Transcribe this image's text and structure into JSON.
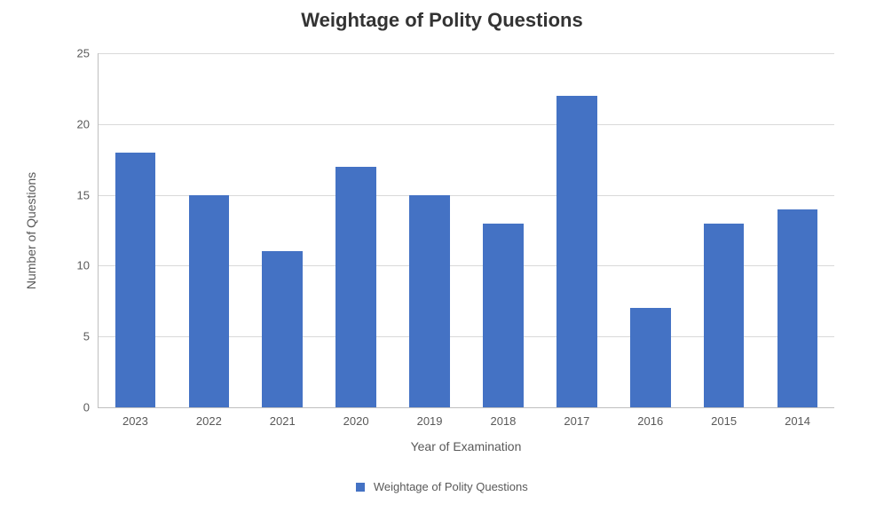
{
  "chart": {
    "type": "bar",
    "title": "Weightage of Polity Questions",
    "title_fontsize": 22,
    "title_fontweight": "bold",
    "title_color": "#333333",
    "background_color": "#ffffff",
    "plot_background_color": "#ffffff",
    "grid_color": "#d9d9d9",
    "axis_line_color": "#bfbfbf",
    "tick_label_color": "#595959",
    "tick_label_fontsize": 13,
    "axis_title_color": "#595959",
    "axis_title_fontsize": 14,
    "x_axis_title": "Year of Examination",
    "y_axis_title": "Number of Questions",
    "ylim": [
      0,
      25
    ],
    "ytick_step": 5,
    "yticks": [
      0,
      5,
      10,
      15,
      20,
      25
    ],
    "categories": [
      "2023",
      "2022",
      "2021",
      "2020",
      "2019",
      "2018",
      "2017",
      "2016",
      "2015",
      "2014"
    ],
    "values": [
      18,
      15,
      11,
      17,
      15,
      13,
      22,
      7,
      13,
      14
    ],
    "bar_color": "#4472c4",
    "bar_width_ratio": 0.55,
    "legend": {
      "label": "Weightage of Polity Questions",
      "swatch_color": "#4472c4",
      "position": "bottom"
    }
  }
}
